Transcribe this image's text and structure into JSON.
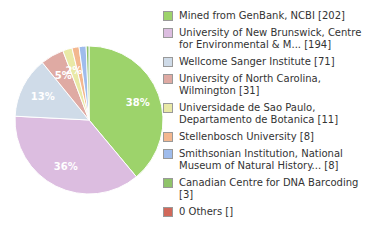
{
  "chart_data": {
    "type": "pie",
    "categories": [
      "Mined from GenBank, NCBI [202]",
      "University of New Brunswick, Centre for Environmental & M... [194]",
      "Wellcome Sanger Institute [71]",
      "University of North Carolina, Wilmington [31]",
      "Universidade de Sao Paulo, Departamento de Botanica [11]",
      "Stellenbosch University [8]",
      "Smithsonian Institution, National Museum of Natural History... [8]",
      "Canadian Centre for DNA Barcoding [3]",
      "0 Others []"
    ],
    "values": [
      38,
      36,
      13,
      5,
      2,
      1.5,
      1.5,
      0.6,
      0
    ],
    "value_labels": [
      "38%",
      "36%",
      "13%",
      "5%",
      "2%",
      null,
      null,
      null,
      null
    ],
    "colors": [
      "#9dd36b",
      "#dcbde0",
      "#cfdbe8",
      "#dfaaa3",
      "#e9e9a6",
      "#f3b78f",
      "#9fbcec",
      "#8fc36a",
      "#d1685a"
    ],
    "data_labels": true,
    "legend": "right"
  }
}
